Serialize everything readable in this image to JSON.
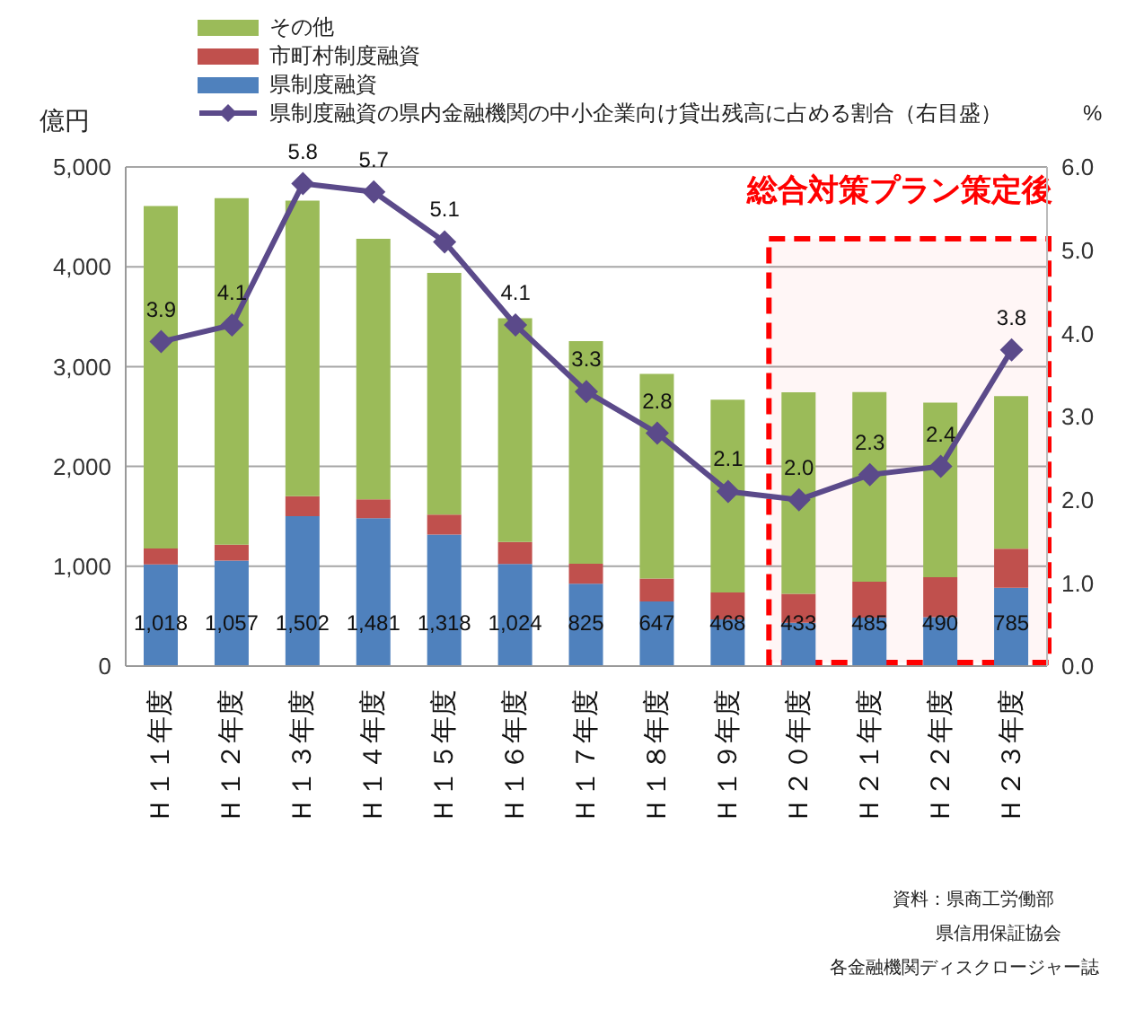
{
  "chart_data": {
    "type": "bar",
    "stacked": true,
    "categories": [
      "Ｈ１１年度",
      "Ｈ１２年度",
      "Ｈ１３年度",
      "Ｈ１４年度",
      "Ｈ１５年度",
      "Ｈ１６年度",
      "Ｈ１７年度",
      "Ｈ１８年度",
      "Ｈ１９年度",
      "Ｈ２０年度",
      "Ｈ２１年度",
      "Ｈ２２年度",
      "Ｈ２３年度"
    ],
    "series": [
      {
        "name": "県制度融資",
        "color": "#4f81bd",
        "values": [
          1018,
          1057,
          1502,
          1481,
          1318,
          1024,
          825,
          647,
          468,
          433,
          485,
          490,
          785
        ],
        "value_labels": [
          "1,018",
          "1,057",
          "1,502",
          "1,481",
          "1,318",
          "1,024",
          "825",
          "647",
          "468",
          "433",
          "485",
          "490",
          "785"
        ]
      },
      {
        "name": "市町村制度融資",
        "color": "#c0504d",
        "values": [
          160,
          160,
          200,
          190,
          200,
          220,
          200,
          230,
          270,
          290,
          360,
          400,
          390
        ]
      },
      {
        "name": "その他",
        "color": "#9bbb59",
        "values": [
          3430,
          3470,
          2960,
          2610,
          2420,
          2240,
          2230,
          2050,
          1930,
          2020,
          1900,
          1750,
          1530
        ]
      },
      {
        "name": "県制度融資の県内金融機関の中小企業向け貸出残高に占める割合（右目盛）",
        "type": "line",
        "axis": "y2",
        "color": "#5b4a8a",
        "values": [
          3.9,
          4.1,
          5.8,
          5.7,
          5.1,
          4.1,
          3.3,
          2.8,
          2.1,
          2.0,
          2.3,
          2.4,
          3.8
        ],
        "value_labels": [
          "3.9",
          "4.1",
          "5.8",
          "5.7",
          "5.1",
          "4.1",
          "3.3",
          "2.8",
          "2.1",
          "2.0",
          "2.3",
          "2.4",
          "3.8"
        ]
      }
    ],
    "ylabel": "億円",
    "y2label": "%",
    "ylim": [
      0,
      5000
    ],
    "yticks": [
      0,
      {
        "value": 1000,
        "label": "1,000"
      },
      {
        "value": 2000,
        "label": "2,000"
      },
      {
        "value": 3000,
        "label": "3,000"
      },
      {
        "value": 4000,
        "label": "4,000"
      },
      {
        "value": 5000,
        "label": "5,000"
      }
    ],
    "y2lim": [
      0,
      6
    ],
    "y2ticks": [
      {
        "value": 0,
        "label": "0.0"
      },
      {
        "value": 1,
        "label": "1.0"
      },
      {
        "value": 2,
        "label": "2.0"
      },
      {
        "value": 3,
        "label": "3.0"
      },
      {
        "value": 4,
        "label": "4.0"
      },
      {
        "value": 5,
        "label": "5.0"
      },
      {
        "value": 6,
        "label": "6.0"
      }
    ],
    "grid": "y",
    "legend": "top left",
    "marker": "diamond",
    "bands": [
      {
        "axis": "x",
        "from": "Ｈ２０年度",
        "to": "Ｈ２３年度",
        "label": "総合対策プラン策定後",
        "color": "#ff0000"
      }
    ],
    "annotations": [
      "資料：県商工労働部",
      "県信用保証協会",
      "各金融機関ディスクロージャー誌"
    ]
  }
}
